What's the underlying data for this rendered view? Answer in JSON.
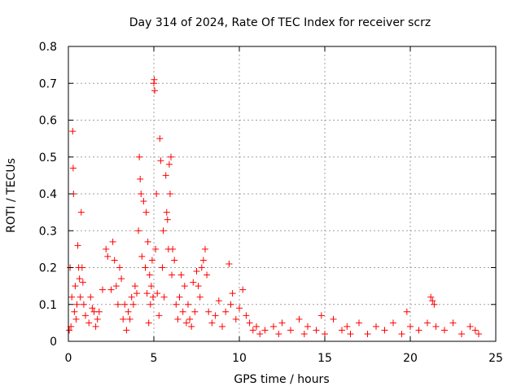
{
  "chart_data": {
    "type": "scatter",
    "title": "Day 314 of 2024, Rate Of TEC Index for receiver scrz",
    "xlabel": "GPS time / hours",
    "ylabel": "ROTI / TECUs",
    "xlim": [
      0,
      25
    ],
    "ylim": [
      0,
      0.8
    ],
    "grid": true,
    "x_ticks": [
      0,
      5,
      10,
      15,
      20,
      25
    ],
    "x_tick_labels": [
      "0",
      "5",
      "10",
      "15",
      "20",
      "25"
    ],
    "y_ticks": [
      0,
      0.1,
      0.2,
      0.3,
      0.4,
      0.5,
      0.6,
      0.7,
      0.8
    ],
    "y_tick_labels": [
      "0",
      "0.1",
      "0.2",
      "0.3",
      "0.4",
      "0.5",
      "0.6",
      "0.7",
      "0.8"
    ],
    "marker": "+",
    "color": "#ff0000",
    "series": [
      {
        "name": "ROTI",
        "points": [
          [
            0.05,
            0.03
          ],
          [
            0.1,
            0.2
          ],
          [
            0.15,
            0.04
          ],
          [
            0.2,
            0.12
          ],
          [
            0.25,
            0.57
          ],
          [
            0.28,
            0.47
          ],
          [
            0.3,
            0.4
          ],
          [
            0.35,
            0.08
          ],
          [
            0.4,
            0.15
          ],
          [
            0.45,
            0.06
          ],
          [
            0.5,
            0.1
          ],
          [
            0.55,
            0.26
          ],
          [
            0.6,
            0.2
          ],
          [
            0.65,
            0.17
          ],
          [
            0.7,
            0.12
          ],
          [
            0.75,
            0.35
          ],
          [
            0.8,
            0.2
          ],
          [
            0.85,
            0.16
          ],
          [
            0.9,
            0.1
          ],
          [
            1.0,
            0.07
          ],
          [
            1.2,
            0.05
          ],
          [
            1.3,
            0.12
          ],
          [
            1.4,
            0.09
          ],
          [
            1.5,
            0.08
          ],
          [
            1.6,
            0.04
          ],
          [
            1.7,
            0.06
          ],
          [
            1.8,
            0.08
          ],
          [
            2.0,
            0.14
          ],
          [
            2.2,
            0.25
          ],
          [
            2.3,
            0.23
          ],
          [
            2.5,
            0.14
          ],
          [
            2.6,
            0.27
          ],
          [
            2.7,
            0.22
          ],
          [
            2.8,
            0.15
          ],
          [
            2.9,
            0.1
          ],
          [
            3.0,
            0.2
          ],
          [
            3.1,
            0.17
          ],
          [
            3.2,
            0.06
          ],
          [
            3.3,
            0.1
          ],
          [
            3.4,
            0.03
          ],
          [
            3.5,
            0.08
          ],
          [
            3.6,
            0.06
          ],
          [
            3.7,
            0.12
          ],
          [
            3.8,
            0.1
          ],
          [
            3.9,
            0.15
          ],
          [
            4.0,
            0.13
          ],
          [
            4.1,
            0.3
          ],
          [
            4.15,
            0.5
          ],
          [
            4.2,
            0.44
          ],
          [
            4.25,
            0.4
          ],
          [
            4.3,
            0.23
          ],
          [
            4.4,
            0.38
          ],
          [
            4.5,
            0.2
          ],
          [
            4.55,
            0.35
          ],
          [
            4.6,
            0.13
          ],
          [
            4.65,
            0.27
          ],
          [
            4.7,
            0.05
          ],
          [
            4.75,
            0.18
          ],
          [
            4.8,
            0.1
          ],
          [
            4.85,
            0.15
          ],
          [
            4.9,
            0.22
          ],
          [
            4.95,
            0.12
          ],
          [
            5.0,
            0.7
          ],
          [
            5.02,
            0.71
          ],
          [
            5.05,
            0.68
          ],
          [
            5.1,
            0.25
          ],
          [
            5.15,
            0.4
          ],
          [
            5.2,
            0.13
          ],
          [
            5.3,
            0.07
          ],
          [
            5.35,
            0.55
          ],
          [
            5.4,
            0.49
          ],
          [
            5.5,
            0.2
          ],
          [
            5.55,
            0.3
          ],
          [
            5.6,
            0.12
          ],
          [
            5.7,
            0.45
          ],
          [
            5.75,
            0.35
          ],
          [
            5.8,
            0.33
          ],
          [
            5.85,
            0.25
          ],
          [
            5.9,
            0.48
          ],
          [
            5.95,
            0.4
          ],
          [
            6.0,
            0.5
          ],
          [
            6.05,
            0.18
          ],
          [
            6.1,
            0.25
          ],
          [
            6.2,
            0.22
          ],
          [
            6.3,
            0.1
          ],
          [
            6.4,
            0.06
          ],
          [
            6.5,
            0.12
          ],
          [
            6.6,
            0.18
          ],
          [
            6.7,
            0.08
          ],
          [
            6.8,
            0.15
          ],
          [
            6.9,
            0.05
          ],
          [
            7.0,
            0.1
          ],
          [
            7.1,
            0.06
          ],
          [
            7.2,
            0.04
          ],
          [
            7.3,
            0.16
          ],
          [
            7.4,
            0.08
          ],
          [
            7.5,
            0.19
          ],
          [
            7.6,
            0.15
          ],
          [
            7.7,
            0.12
          ],
          [
            7.8,
            0.2
          ],
          [
            7.9,
            0.22
          ],
          [
            8.0,
            0.25
          ],
          [
            8.1,
            0.18
          ],
          [
            8.2,
            0.08
          ],
          [
            8.4,
            0.05
          ],
          [
            8.6,
            0.07
          ],
          [
            8.8,
            0.11
          ],
          [
            9.0,
            0.04
          ],
          [
            9.2,
            0.08
          ],
          [
            9.4,
            0.21
          ],
          [
            9.5,
            0.1
          ],
          [
            9.6,
            0.13
          ],
          [
            9.8,
            0.06
          ],
          [
            10.0,
            0.09
          ],
          [
            10.2,
            0.14
          ],
          [
            10.4,
            0.07
          ],
          [
            10.6,
            0.05
          ],
          [
            10.8,
            0.03
          ],
          [
            11.0,
            0.04
          ],
          [
            11.2,
            0.02
          ],
          [
            11.5,
            0.03
          ],
          [
            12.0,
            0.04
          ],
          [
            12.3,
            0.02
          ],
          [
            12.5,
            0.05
          ],
          [
            13.0,
            0.03
          ],
          [
            13.5,
            0.06
          ],
          [
            13.8,
            0.02
          ],
          [
            14.0,
            0.04
          ],
          [
            14.5,
            0.03
          ],
          [
            14.8,
            0.07
          ],
          [
            15.0,
            0.02
          ],
          [
            15.5,
            0.06
          ],
          [
            16.0,
            0.03
          ],
          [
            16.3,
            0.04
          ],
          [
            16.5,
            0.02
          ],
          [
            17.0,
            0.05
          ],
          [
            17.5,
            0.02
          ],
          [
            18.0,
            0.04
          ],
          [
            18.5,
            0.03
          ],
          [
            19.0,
            0.05
          ],
          [
            19.5,
            0.02
          ],
          [
            19.8,
            0.08
          ],
          [
            20.0,
            0.04
          ],
          [
            20.5,
            0.03
          ],
          [
            21.0,
            0.05
          ],
          [
            21.2,
            0.12
          ],
          [
            21.3,
            0.11
          ],
          [
            21.4,
            0.1
          ],
          [
            21.5,
            0.04
          ],
          [
            22.0,
            0.03
          ],
          [
            22.5,
            0.05
          ],
          [
            23.0,
            0.02
          ],
          [
            23.5,
            0.04
          ],
          [
            23.8,
            0.03
          ],
          [
            24.0,
            0.02
          ]
        ]
      }
    ]
  }
}
